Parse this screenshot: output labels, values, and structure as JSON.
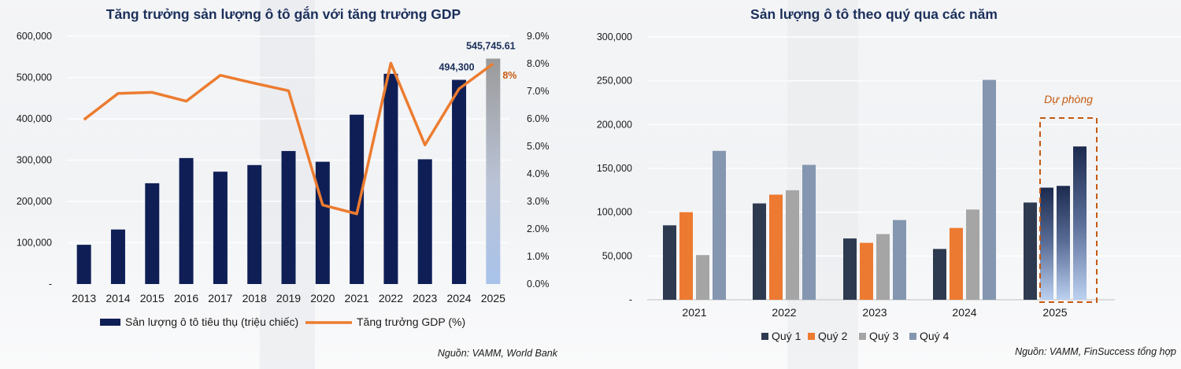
{
  "colors": {
    "navy": "#0f1f56",
    "orange": "#ec7c30",
    "q1": "#2e3a4f",
    "q2": "#ed7a31",
    "q3": "#a5a5a5",
    "q4": "#8496b0",
    "title": "#1b2f5b",
    "dashed": "#c55a11"
  },
  "chart_data": [
    {
      "type": "bar",
      "title": "Tăng trưởng sản lượng ô tô gắn với tăng trưởng GDP",
      "categories": [
        "2013",
        "2014",
        "2015",
        "2016",
        "2017",
        "2018",
        "2019",
        "2020",
        "2021",
        "2022",
        "2023",
        "2024",
        "2025"
      ],
      "y_ticks": [
        "-",
        "100,000",
        "200,000",
        "300,000",
        "400,000",
        "500,000",
        "600,000"
      ],
      "ylim": [
        0,
        600000
      ],
      "y2_ticks": [
        "0.0%",
        "1.0%",
        "2.0%",
        "3.0%",
        "4.0%",
        "5.0%",
        "6.0%",
        "7.0%",
        "8.0%",
        "9.0%"
      ],
      "y2lim": [
        0,
        9
      ],
      "series": [
        {
          "name": "Sản lượng ô tô tiêu thụ (triệu chiếc)",
          "type": "bar",
          "values": [
            95000,
            132000,
            244000,
            305000,
            272000,
            288000,
            322000,
            296000,
            410000,
            509000,
            302000,
            494300,
            545745.61
          ]
        },
        {
          "name": "Tăng trưởng GDP (%)",
          "type": "line",
          "axis": "right",
          "values": [
            5.97,
            6.92,
            6.96,
            6.64,
            7.58,
            7.29,
            7.02,
            2.87,
            2.55,
            8.02,
            5.05,
            7.09,
            8.0
          ]
        }
      ],
      "data_labels": {
        "bar_2024": "494,300",
        "bar_2025": "545,745.61",
        "line_2025": "8%"
      },
      "highlight": "2025 bar drawn with gradient fill (forecast)",
      "legend": "bottom",
      "source": "Nguồn: VAMM, World Bank"
    },
    {
      "type": "bar",
      "title": "Sản lượng ô tô theo quý qua các năm",
      "categories": [
        "2021",
        "2022",
        "2023",
        "2024",
        "2025"
      ],
      "y_ticks": [
        "-",
        "50,000",
        "100,000",
        "150,000",
        "200,000",
        "250,000",
        "300,000"
      ],
      "ylim": [
        0,
        300000
      ],
      "series": [
        {
          "name": "Quý 1",
          "values": [
            85000,
            110000,
            70000,
            58000,
            111000
          ]
        },
        {
          "name": "Quý 2",
          "values": [
            100000,
            120000,
            65000,
            82000,
            128000
          ]
        },
        {
          "name": "Quý 3",
          "values": [
            51000,
            125000,
            75000,
            103000,
            130000
          ]
        },
        {
          "name": "Quý 4",
          "values": [
            170000,
            154000,
            91000,
            251000,
            175000
          ]
        }
      ],
      "annotation": "Dự phòng",
      "highlight": "2025 quarters 2-4 drawn with gradient fill inside dashed box (forecast)",
      "legend": "bottom",
      "source": "Nguồn: VAMM, FinSuccess tổng hợp"
    }
  ]
}
